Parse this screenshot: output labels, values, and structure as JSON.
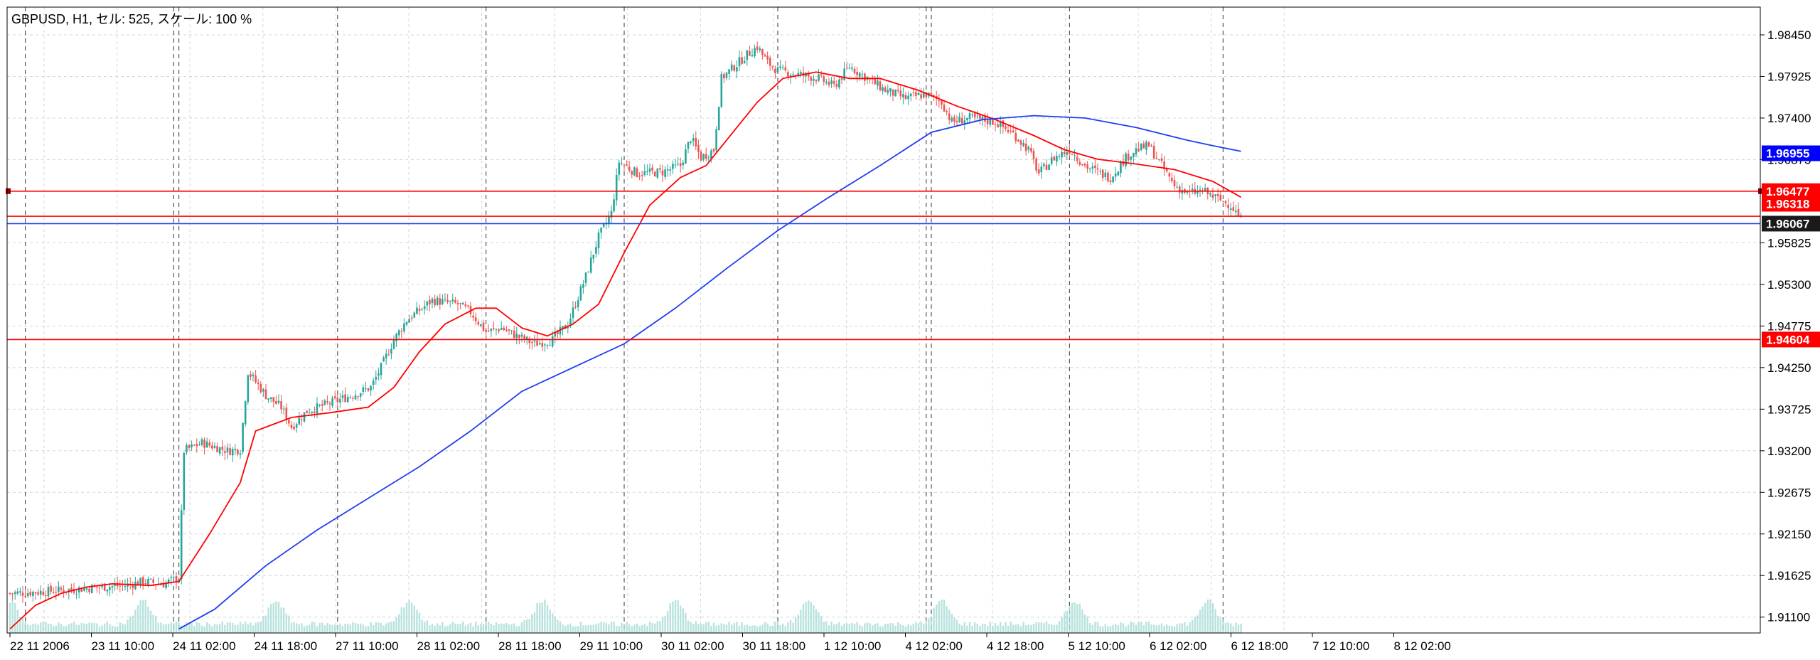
{
  "chart_data": {
    "type": "candlestick",
    "title": "GBPUSD, H1, セル: 525, スケール: 100 %",
    "symbol": "GBPUSD",
    "timeframe": "H1",
    "ylim": [
      1.909,
      1.988
    ],
    "y_ticks": [
      "1.98450",
      "1.97925",
      "1.97400",
      "1.96875",
      "1.95825",
      "1.95300",
      "1.94775",
      "1.94250",
      "1.93725",
      "1.93200",
      "1.92675",
      "1.92150",
      "1.91625",
      "1.91100"
    ],
    "x_labels": [
      "22 11 2006",
      "23 11 10:00",
      "24 11 02:00",
      "24 11 18:00",
      "27 11 10:00",
      "28 11 02:00",
      "28 11 18:00",
      "29 11 10:00",
      "30 11 02:00",
      "30 11 18:00",
      "1 12 10:00",
      "4 12 02:00",
      "4 12 18:00",
      "5 12 10:00",
      "6 12 02:00",
      "6 12 18:00",
      "7 12 10:00",
      "8 12 02:00"
    ],
    "close_path": [
      [
        0,
        1.914
      ],
      [
        12,
        1.9142
      ],
      [
        25,
        1.9145
      ],
      [
        35,
        1.9148
      ],
      [
        45,
        1.915
      ],
      [
        52,
        1.9155
      ],
      [
        60,
        1.9152
      ],
      [
        66,
        1.916
      ],
      [
        68,
        1.932
      ],
      [
        75,
        1.933
      ],
      [
        85,
        1.932
      ],
      [
        90,
        1.9322
      ],
      [
        93,
        1.942
      ],
      [
        100,
        1.939
      ],
      [
        106,
        1.9375
      ],
      [
        110,
        1.935
      ],
      [
        116,
        1.937
      ],
      [
        125,
        1.938
      ],
      [
        135,
        1.9392
      ],
      [
        141,
        1.94
      ],
      [
        145,
        1.9425
      ],
      [
        150,
        1.946
      ],
      [
        155,
        1.9485
      ],
      [
        165,
        1.951
      ],
      [
        175,
        1.9505
      ],
      [
        180,
        1.9495
      ],
      [
        186,
        1.947
      ],
      [
        192,
        1.9475
      ],
      [
        198,
        1.9465
      ],
      [
        205,
        1.9455
      ],
      [
        212,
        1.946
      ],
      [
        218,
        1.948
      ],
      [
        225,
        1.954
      ],
      [
        230,
        1.959
      ],
      [
        235,
        1.962
      ],
      [
        238,
        1.9685
      ],
      [
        245,
        1.967
      ],
      [
        255,
        1.9672
      ],
      [
        262,
        1.968
      ],
      [
        266,
        1.9715
      ],
      [
        270,
        1.969
      ],
      [
        275,
        1.97
      ],
      [
        278,
        1.979
      ],
      [
        283,
        1.9805
      ],
      [
        288,
        1.982
      ],
      [
        292,
        1.983
      ],
      [
        296,
        1.981
      ],
      [
        300,
        1.98
      ],
      [
        308,
        1.9795
      ],
      [
        316,
        1.979
      ],
      [
        322,
        1.978
      ],
      [
        328,
        1.9805
      ],
      [
        335,
        1.979
      ],
      [
        342,
        1.9775
      ],
      [
        350,
        1.9765
      ],
      [
        358,
        1.977
      ],
      [
        364,
        1.976
      ],
      [
        368,
        1.9735
      ],
      [
        375,
        1.974
      ],
      [
        385,
        1.9735
      ],
      [
        392,
        1.972
      ],
      [
        398,
        1.97
      ],
      [
        402,
        1.967
      ],
      [
        408,
        1.969
      ],
      [
        414,
        1.97
      ],
      [
        420,
        1.968
      ],
      [
        426,
        1.967
      ],
      [
        430,
        1.9665
      ],
      [
        436,
        1.969
      ],
      [
        440,
        1.97
      ],
      [
        445,
        1.9705
      ],
      [
        450,
        1.968
      ],
      [
        455,
        1.9655
      ],
      [
        460,
        1.9645
      ],
      [
        466,
        1.9648
      ],
      [
        472,
        1.9638
      ],
      [
        477,
        1.963
      ],
      [
        481,
        1.9612
      ]
    ],
    "volume_peaks": [
      0,
      52,
      104,
      156,
      208,
      260,
      312,
      364,
      416,
      468
    ],
    "series": [
      {
        "name": "",
        "color": "#ff0000",
        "values": [
          [
            0,
            1.9095
          ],
          [
            10,
            1.9125
          ],
          [
            20,
            1.914
          ],
          [
            30,
            1.9148
          ],
          [
            40,
            1.9152
          ],
          [
            55,
            1.915
          ],
          [
            66,
            1.9155
          ],
          [
            78,
            1.9215
          ],
          [
            90,
            1.928
          ],
          [
            96,
            1.9345
          ],
          [
            110,
            1.9362
          ],
          [
            125,
            1.9368
          ],
          [
            140,
            1.9375
          ],
          [
            150,
            1.94
          ],
          [
            160,
            1.9445
          ],
          [
            170,
            1.948
          ],
          [
            182,
            1.95
          ],
          [
            190,
            1.95
          ],
          [
            200,
            1.9475
          ],
          [
            210,
            1.9465
          ],
          [
            220,
            1.948
          ],
          [
            230,
            1.9505
          ],
          [
            240,
            1.957
          ],
          [
            250,
            1.963
          ],
          [
            262,
            1.9665
          ],
          [
            272,
            1.968
          ],
          [
            282,
            1.972
          ],
          [
            292,
            1.976
          ],
          [
            302,
            1.979
          ],
          [
            315,
            1.9798
          ],
          [
            328,
            1.979
          ],
          [
            340,
            1.979
          ],
          [
            355,
            1.9775
          ],
          [
            370,
            1.9755
          ],
          [
            385,
            1.9738
          ],
          [
            400,
            1.9718
          ],
          [
            412,
            1.97
          ],
          [
            425,
            1.9688
          ],
          [
            440,
            1.9682
          ],
          [
            455,
            1.9675
          ],
          [
            470,
            1.966
          ],
          [
            481,
            1.964
          ]
        ]
      },
      {
        "name": "",
        "color": "#1f3ff0",
        "values": [
          [
            66,
            1.9095
          ],
          [
            80,
            1.912
          ],
          [
            100,
            1.9175
          ],
          [
            120,
            1.922
          ],
          [
            140,
            1.926
          ],
          [
            160,
            1.93
          ],
          [
            180,
            1.9345
          ],
          [
            200,
            1.9395
          ],
          [
            220,
            1.9425
          ],
          [
            240,
            1.9455
          ],
          [
            260,
            1.95
          ],
          [
            280,
            1.955
          ],
          [
            300,
            1.9598
          ],
          [
            320,
            1.964
          ],
          [
            340,
            1.968
          ],
          [
            360,
            1.9722
          ],
          [
            380,
            1.9738
          ],
          [
            400,
            1.9743
          ],
          [
            420,
            1.974
          ],
          [
            440,
            1.9728
          ],
          [
            460,
            1.9712
          ],
          [
            470,
            1.9705
          ],
          [
            481,
            1.9698
          ]
        ]
      }
    ],
    "horizontal_lines": [
      {
        "price": 1.96477,
        "label": "1.96477",
        "color": "#ff0000"
      },
      {
        "price": 1.9616,
        "label": "",
        "color": "#ff0000"
      },
      {
        "price": 1.94604,
        "label": "1.94604",
        "color": "#ff0000"
      },
      {
        "price": 1.96067,
        "label": "",
        "color": "#1f3ff0"
      }
    ],
    "price_labels": [
      {
        "price": 1.96955,
        "text": "1.96955",
        "bg": "#0000ff",
        "fg": "#ffffff"
      },
      {
        "price": 1.96477,
        "text": "1.96477",
        "bg": "#ff0000",
        "fg": "#ffffff"
      },
      {
        "price": 1.96318,
        "text": "1.96318",
        "bg": "#ff0000",
        "fg": "#ffffff"
      },
      {
        "price": 1.96067,
        "text": "1.96067",
        "bg": "#1a1a1a",
        "fg": "#ffffff"
      },
      {
        "price": 1.94604,
        "text": "1.94604",
        "bg": "#ff0000",
        "fg": "#ffffff"
      }
    ],
    "colors": {
      "bull": "#26a69a",
      "bear": "#ef5350",
      "grid": "#cfd6dd",
      "separator": "#555555",
      "axis": "#000000"
    }
  }
}
